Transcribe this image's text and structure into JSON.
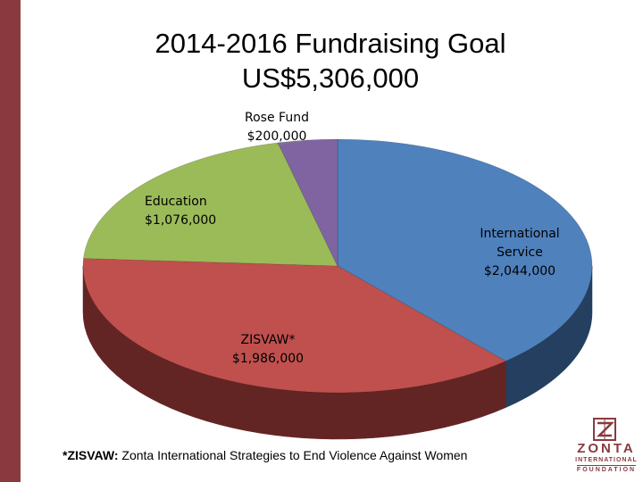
{
  "chart_data": {
    "type": "pie",
    "title": "2014-2016 Fundraising Goal",
    "subtitle": "US$5,306,000",
    "style": "3d-pie",
    "slices": [
      {
        "label": "International Service",
        "display": "$2,044,000",
        "value": 2044000,
        "color": "#4f81bd",
        "side_color": "#243f60"
      },
      {
        "label": "ZISVAW*",
        "display": "$1,986,000",
        "value": 1986000,
        "color": "#c0504d",
        "side_color": "#632523"
      },
      {
        "label": "Education",
        "display": "$1,076,000",
        "value": 1076000,
        "color": "#9bbb59",
        "side_color": "#4f6228"
      },
      {
        "label": "Rose Fund",
        "display": "$200,000",
        "value": 200000,
        "color": "#8064a2",
        "side_color": "#3f3151"
      }
    ]
  },
  "labels": {
    "international_l1": "International",
    "international_l2": "Service",
    "international_amount": "$2,044,000",
    "zisvaw_l1": "ZISVAW*",
    "zisvaw_amount": "$1,986,000",
    "education_l1": "Education",
    "education_amount": "$1,076,000",
    "rose_l1": "Rose Fund",
    "rose_amount": "$200,000"
  },
  "footnote": {
    "key": "*ZISVAW:",
    "text": " Zonta International Strategies to End Violence Against Women"
  },
  "logo": {
    "line1": "ZONTA",
    "line2": "INTERNATIONAL",
    "line3": "FOUNDATION",
    "color": "#8a3a3f"
  }
}
